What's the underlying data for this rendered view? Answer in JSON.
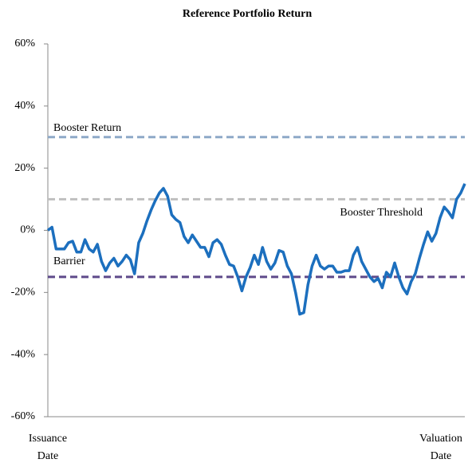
{
  "chart_data": {
    "type": "line",
    "title": "Reference Portfolio Return",
    "categories": [
      "Issuance Date",
      null,
      null,
      null,
      null,
      null,
      null,
      null,
      null,
      null,
      null,
      null,
      null,
      null,
      null,
      null,
      null,
      null,
      null,
      null,
      null,
      null,
      null,
      null,
      null,
      null,
      null,
      null,
      null,
      null,
      null,
      null,
      null,
      null,
      null,
      null,
      null,
      null,
      null,
      null,
      null,
      null,
      null,
      null,
      null,
      null,
      null,
      null,
      null,
      null,
      null,
      null,
      null,
      null,
      null,
      null,
      null,
      null,
      null,
      null,
      null,
      null,
      null,
      null,
      null,
      null,
      null,
      null,
      null,
      null,
      null,
      null,
      null,
      null,
      null,
      null,
      null,
      null,
      null,
      null,
      null,
      null,
      null,
      null,
      null,
      null,
      null,
      null,
      null,
      null,
      null,
      null,
      null,
      null,
      null,
      null,
      null,
      null,
      null,
      null,
      null,
      "Valuation Date"
    ],
    "values": [
      0,
      1,
      -6,
      -6,
      -6,
      -4,
      -3.5,
      -7,
      -7,
      -3,
      -6,
      -7,
      -4.5,
      -10,
      -13,
      -10.5,
      -9,
      -11.5,
      -10,
      -8,
      -9.5,
      -14,
      -4,
      -1,
      3,
      6.5,
      9.5,
      12,
      13.5,
      11,
      5,
      3.5,
      2.5,
      -2,
      -4,
      -1.5,
      -3.5,
      -5.5,
      -5.5,
      -8.5,
      -4,
      -3,
      -4.5,
      -8,
      -11,
      -11.5,
      -15,
      -19.5,
      -15,
      -12,
      -8,
      -11,
      -5.5,
      -10,
      -12.5,
      -10.5,
      -6.5,
      -7,
      -11.5,
      -14,
      -20,
      -27,
      -26.5,
      -17.5,
      -11.5,
      -8,
      -11.5,
      -12.5,
      -11.5,
      -11.5,
      -13.5,
      -13.5,
      -13,
      -13,
      -8,
      -5.5,
      -10,
      -12.5,
      -15,
      -16.5,
      -15.5,
      -18.5,
      -13.5,
      -15,
      -10.5,
      -15,
      -18.5,
      -20.5,
      -16.5,
      -14,
      -9,
      -4.5,
      -0.5,
      -3.5,
      -1,
      4,
      7.5,
      6,
      4,
      10,
      12,
      15
    ],
    "color": "#1c6fbe",
    "ylim": [
      -60,
      60
    ],
    "yticks": [
      {
        "value": -60,
        "label": "-60%"
      },
      {
        "value": -40,
        "label": "-40%"
      },
      {
        "value": -20,
        "label": "-20%"
      },
      {
        "value": 0,
        "label": "0%"
      },
      {
        "value": 20,
        "label": "20%"
      },
      {
        "value": 40,
        "label": "40%"
      },
      {
        "value": 60,
        "label": "60%"
      }
    ],
    "reference_lines": [
      {
        "label": "Booster Return",
        "value": 30,
        "color": "#8ea9c8"
      },
      {
        "label": "Booster Threshold",
        "value": 10,
        "color": "#c0c0c0"
      },
      {
        "label": "Barrier",
        "value": -15,
        "color": "#5e4a8a"
      }
    ],
    "grid": false
  }
}
